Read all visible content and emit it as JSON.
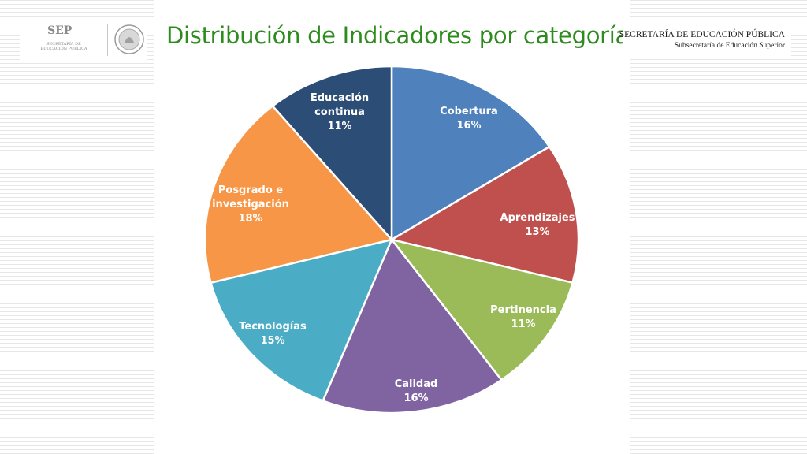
{
  "header": {
    "title": "Distribución de Indicadores por categoría",
    "logo_left": {
      "acronym": "SEP",
      "subtitle_line1": "SECRETARÍA DE",
      "subtitle_line2": "EDUCACIÓN PÚBLICA"
    },
    "logo_right": {
      "line1": "SECRETARÍA DE EDUCACIÓN PÚBLICA",
      "line2": "Subsecretaría de Educación Superior"
    }
  },
  "colors": {
    "title": "#2e8b1e",
    "slice_border": "#ffffff",
    "label_text": "#ffffff"
  },
  "chart_data": {
    "type": "pie",
    "title": "",
    "start_angle_deg": 0,
    "direction": "clockwise",
    "slices": [
      {
        "label": "Cobertura",
        "value": 16,
        "display": "16%",
        "color": "#4f81bd"
      },
      {
        "label": "Aprendizajes",
        "value": 13,
        "display": "13%",
        "color": "#c0504d"
      },
      {
        "label": "Pertinencia",
        "value": 11,
        "display": "11%",
        "color": "#9bbb59"
      },
      {
        "label": "Calidad",
        "value": 16,
        "display": "16%",
        "color": "#8064a2"
      },
      {
        "label": "Tecnologías",
        "value": 15,
        "display": "15%",
        "color": "#4bacc6"
      },
      {
        "label": "Posgrado e investigación",
        "value": 18,
        "display": "18%",
        "color": "#f79646"
      },
      {
        "label": "Educación continua",
        "value": 11,
        "display": "11%",
        "color": "#2c4d75"
      }
    ]
  }
}
